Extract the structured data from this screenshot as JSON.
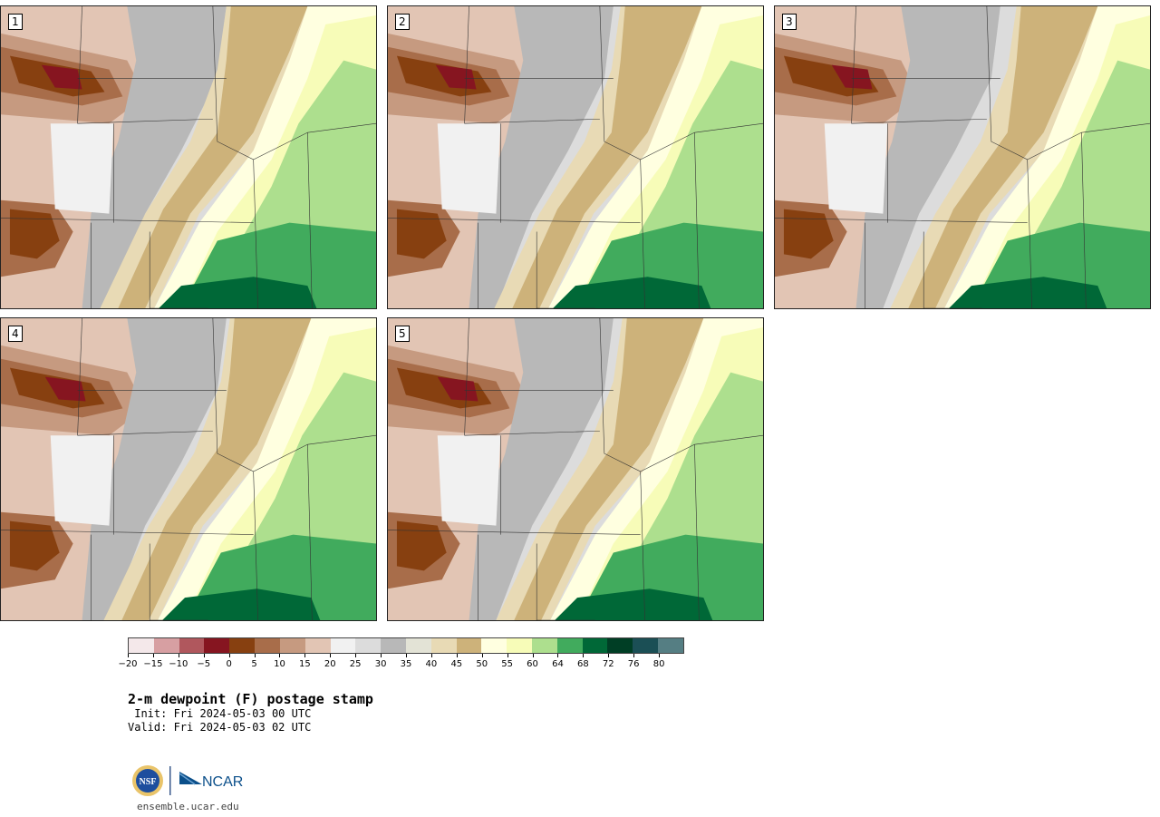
{
  "panels": [
    {
      "label": "1"
    },
    {
      "label": "2"
    },
    {
      "label": "3"
    },
    {
      "label": "4"
    },
    {
      "label": "5"
    }
  ],
  "colorbar": {
    "colors": [
      "#f4e8ea",
      "#d79fa2",
      "#b0575d",
      "#861520",
      "#874010",
      "#a86d4a",
      "#c69a80",
      "#e2c5b4",
      "#f1f1f1",
      "#dcdcdc",
      "#b8b8b8",
      "#e3e3d6",
      "#e8dab5",
      "#cdb27a",
      "#ffffe0",
      "#f7fcb8",
      "#addf8e",
      "#41ab5d",
      "#006837",
      "#003e25",
      "#1b4f55",
      "#557e83"
    ],
    "tick_labels": [
      "−20",
      "−15",
      "−10",
      "−5",
      "0",
      "5",
      "10",
      "15",
      "20",
      "25",
      "30",
      "35",
      "40",
      "45",
      "50",
      "55",
      "60",
      "64",
      "68",
      "72",
      "76",
      "80"
    ]
  },
  "text": {
    "title": "2-m dewpoint (F) postage stamp",
    "init": " Init: Fri 2024-05-03 00 UTC",
    "valid": "Valid: Fri 2024-05-03 02 UTC",
    "url": "ensemble.ucar.edu",
    "logo_nsf": "NSF",
    "logo_ncar": "NCAR"
  }
}
